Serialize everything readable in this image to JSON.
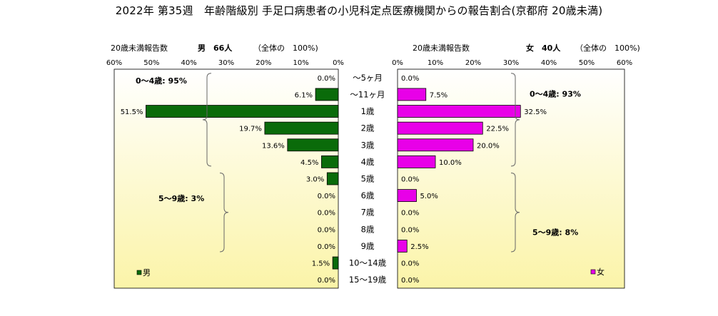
{
  "title": "2022年 第35週　年齢階級別 手足口病患者の小児科定点医療機関からの報告割合(京都府 20歳未満)",
  "chart_data": {
    "type": "bar",
    "orientation": "horizontal",
    "layout": "population-pyramid",
    "categories": [
      "～5ヶ月",
      "～11ヶ月",
      "1歳",
      "2歳",
      "3歳",
      "4歳",
      "5歳",
      "6歳",
      "7歳",
      "8歳",
      "9歳",
      "10～14歳",
      "15～19歳"
    ],
    "xlim": [
      0,
      60
    ],
    "ticks": [
      "60%",
      "50%",
      "40%",
      "30%",
      "20%",
      "10%",
      "0%"
    ],
    "ticks_right": [
      "0%",
      "10%",
      "20%",
      "30%",
      "40%",
      "50%",
      "60%"
    ],
    "series": [
      {
        "name": "男",
        "header_label": "20歳未満報告数",
        "header_count": "男　66人",
        "header_total": "（全体の　100%)",
        "color": "#0a6b0a",
        "values": [
          0.0,
          6.1,
          51.5,
          19.7,
          13.6,
          4.5,
          3.0,
          0.0,
          0.0,
          0.0,
          0.0,
          1.5,
          0.0
        ],
        "labels": [
          "0.0%",
          "6.1%",
          "51.5%",
          "19.7%",
          "13.6%",
          "4.5%",
          "3.0%",
          "0.0%",
          "0.0%",
          "0.0%",
          "0.0%",
          "1.5%",
          "0.0%"
        ],
        "legend": "男"
      },
      {
        "name": "女",
        "header_label": "20歳未満報告数",
        "header_count": "女　40人",
        "header_total": "（全体の　100%)",
        "color": "#e800e8",
        "values": [
          0.0,
          7.5,
          32.5,
          22.5,
          20.0,
          10.0,
          0.0,
          5.0,
          0.0,
          0.0,
          2.5,
          0.0,
          0.0
        ],
        "labels": [
          "0.0%",
          "7.5%",
          "32.5%",
          "22.5%",
          "20.0%",
          "10.0%",
          "0.0%",
          "5.0%",
          "0.0%",
          "0.0%",
          "2.5%",
          "0.0%",
          "0.0%"
        ],
        "legend": "女"
      }
    ],
    "annotations": {
      "left_group1": "0～4歳: 95%",
      "left_group2": "5～9歳: 3%",
      "right_group1": "0～4歳: 93%",
      "right_group2": "5～9歳: 8%"
    },
    "background_gradient": [
      "#ffffff",
      "#fbf4a8"
    ]
  }
}
